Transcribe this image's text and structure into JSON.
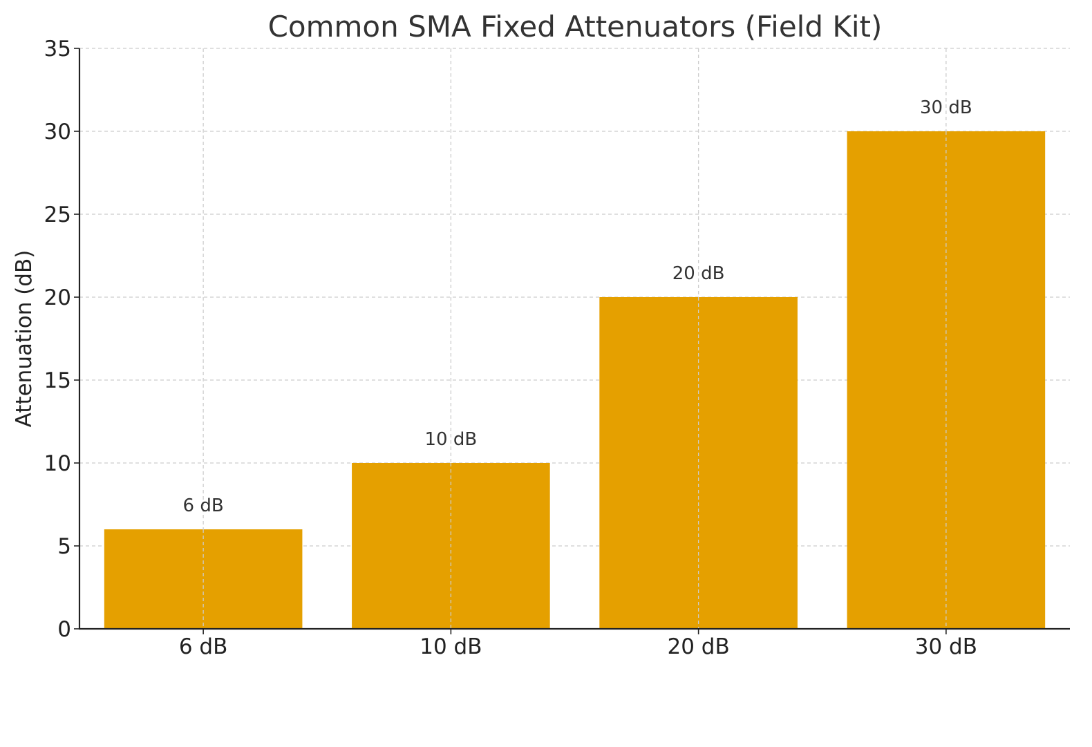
{
  "chart_data": {
    "type": "bar",
    "title": "Common SMA Fixed Attenuators (Field Kit)",
    "xlabel": "",
    "ylabel": "Attenuation (dB)",
    "categories": [
      "6 dB",
      "10 dB",
      "20 dB",
      "30 dB"
    ],
    "values": [
      6,
      10,
      20,
      30
    ],
    "bar_labels": [
      "6 dB",
      "10 dB",
      "20 dB",
      "30 dB"
    ],
    "ylim": [
      0,
      35
    ],
    "yticks": [
      0,
      5,
      10,
      15,
      20,
      25,
      30,
      35
    ],
    "grid": true,
    "bar_color": "#e5a000"
  }
}
